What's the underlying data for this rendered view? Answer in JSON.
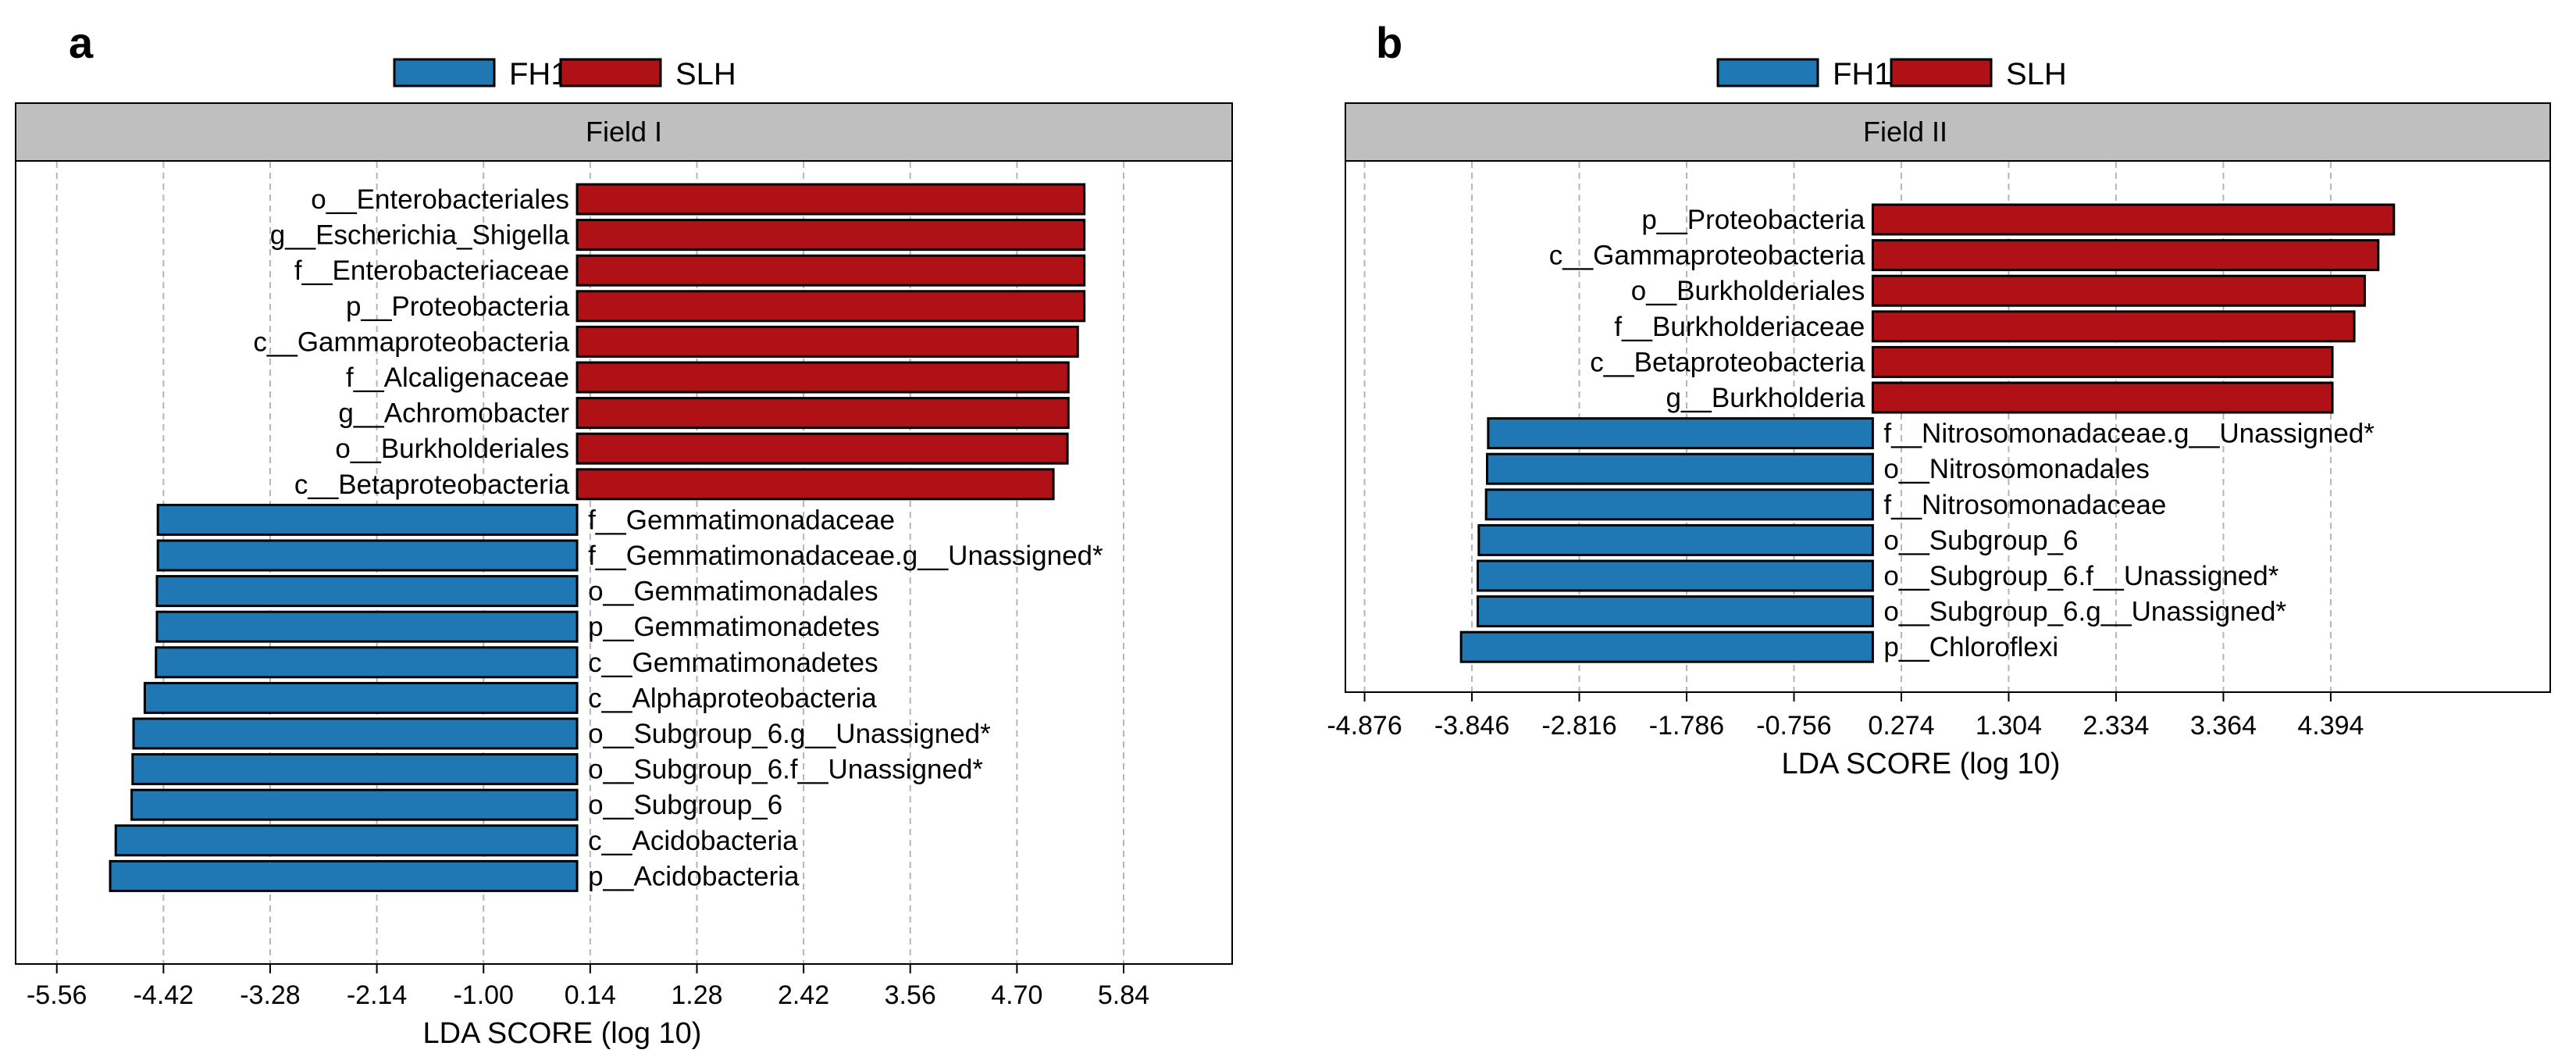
{
  "colors": {
    "FH1": "#1f77b4",
    "SLH": "#b01116",
    "strip": "#bfbfbf",
    "grid": "#b5b5b5"
  },
  "chart_data": [
    {
      "type": "bar",
      "orientation": "horizontal",
      "panel": "a",
      "title": "Field I",
      "xlabel": "LDA SCORE (log 10)",
      "legend": [
        "FH1",
        "SLH"
      ],
      "ticks": [
        -5.56,
        -4.42,
        -3.28,
        -2.14,
        -1.0,
        0.14,
        1.28,
        2.42,
        3.56,
        4.7,
        5.84
      ],
      "tick_labels": [
        "-5.56",
        "-4.42",
        "-3.28",
        "-2.14",
        "-1.00",
        "0.14",
        "1.28",
        "2.42",
        "3.56",
        "4.70",
        "5.84"
      ],
      "xlim": [
        -6.0,
        7.0
      ],
      "bars": [
        {
          "label": "o__Enterobacteriales",
          "value": 5.42,
          "group": "SLH"
        },
        {
          "label": "g__Escherichia_Shigella",
          "value": 5.42,
          "group": "SLH"
        },
        {
          "label": "f__Enterobacteriaceae",
          "value": 5.42,
          "group": "SLH"
        },
        {
          "label": "p__Proteobacteria",
          "value": 5.42,
          "group": "SLH"
        },
        {
          "label": "c__Gammaproteobacteria",
          "value": 5.35,
          "group": "SLH"
        },
        {
          "label": "f__Alcaligenaceae",
          "value": 5.25,
          "group": "SLH"
        },
        {
          "label": "g__Achromobacter",
          "value": 5.25,
          "group": "SLH"
        },
        {
          "label": "o__Burkholderiales",
          "value": 5.24,
          "group": "SLH"
        },
        {
          "label": "c__Betaproteobacteria",
          "value": 5.09,
          "group": "SLH"
        },
        {
          "label": "f__Gemmatimonadaceae",
          "value": -4.48,
          "group": "FH1"
        },
        {
          "label": "f__Gemmatimonadaceae.g__Unassigned*",
          "value": -4.48,
          "group": "FH1"
        },
        {
          "label": "o__Gemmatimonadales",
          "value": -4.49,
          "group": "FH1"
        },
        {
          "label": "p__Gemmatimonadetes",
          "value": -4.49,
          "group": "FH1"
        },
        {
          "label": "c__Gemmatimonadetes",
          "value": -4.5,
          "group": "FH1"
        },
        {
          "label": "c__Alphaproteobacteria",
          "value": -4.62,
          "group": "FH1"
        },
        {
          "label": "o__Subgroup_6.g__Unassigned*",
          "value": -4.74,
          "group": "FH1"
        },
        {
          "label": "o__Subgroup_6.f__Unassigned*",
          "value": -4.75,
          "group": "FH1"
        },
        {
          "label": "o__Subgroup_6",
          "value": -4.76,
          "group": "FH1"
        },
        {
          "label": "c__Acidobacteria",
          "value": -4.93,
          "group": "FH1"
        },
        {
          "label": "p__Acidobacteria",
          "value": -4.99,
          "group": "FH1"
        }
      ]
    },
    {
      "type": "bar",
      "orientation": "horizontal",
      "panel": "b",
      "title": "Field II",
      "xlabel": "LDA SCORE (log 10)",
      "legend": [
        "FH1",
        "SLH"
      ],
      "ticks": [
        -4.876,
        -3.846,
        -2.816,
        -1.786,
        -0.756,
        0.274,
        1.304,
        2.334,
        3.364,
        4.394
      ],
      "tick_labels": [
        "-4.876",
        "-3.846",
        "-2.816",
        "-1.786",
        "-0.756",
        "0.274",
        "1.304",
        "2.334",
        "3.364",
        "4.394"
      ],
      "xlim": [
        -5.06,
        6.5
      ],
      "bars": [
        {
          "label": "p__Proteobacteria",
          "value": 5.0,
          "group": "SLH"
        },
        {
          "label": "c__Gammaproteobacteria",
          "value": 4.85,
          "group": "SLH"
        },
        {
          "label": "o__Burkholderiales",
          "value": 4.72,
          "group": "SLH"
        },
        {
          "label": "f__Burkholderiaceae",
          "value": 4.62,
          "group": "SLH"
        },
        {
          "label": "c__Betaproteobacteria",
          "value": 4.41,
          "group": "SLH"
        },
        {
          "label": "g__Burkholderia",
          "value": 4.41,
          "group": "SLH"
        },
        {
          "label": "f__Nitrosomonadaceae.g__Unassigned*",
          "value": -3.69,
          "group": "FH1"
        },
        {
          "label": "o__Nitrosomonadales",
          "value": -3.7,
          "group": "FH1"
        },
        {
          "label": "f__Nitrosomonadaceae",
          "value": -3.71,
          "group": "FH1"
        },
        {
          "label": "o__Subgroup_6",
          "value": -3.78,
          "group": "FH1"
        },
        {
          "label": "o__Subgroup_6.f__Unassigned*",
          "value": -3.79,
          "group": "FH1"
        },
        {
          "label": "o__Subgroup_6.g__Unassigned*",
          "value": -3.79,
          "group": "FH1"
        },
        {
          "label": "p__Chloroflexi",
          "value": -3.95,
          "group": "FH1"
        }
      ]
    }
  ]
}
